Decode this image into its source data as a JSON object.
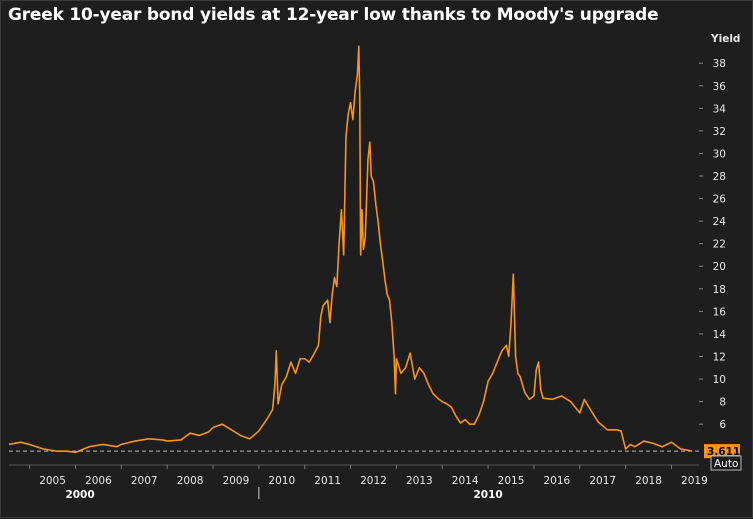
{
  "header": {
    "title": "Greek 10-year bond yields at 12-year low thanks to Moody's upgrade"
  },
  "colors": {
    "background": "#1e1e1e",
    "series": "#f7931e",
    "text": "#e8e8e8",
    "reference_line": "#bbbbbb"
  },
  "controls": {
    "scale_label": "Auto"
  },
  "chart_data": {
    "type": "line",
    "title": "Greek 10-year bond yields at 12-year low thanks to Moody's upgrade",
    "xlabel": "",
    "ylabel": "Yield",
    "xlim": [
      2004.55,
      2019.6
    ],
    "ylim": [
      3.0,
      40.5
    ],
    "y_axis_side": "right",
    "y_ticks": [
      6,
      8,
      10,
      12,
      14,
      16,
      18,
      20,
      22,
      24,
      26,
      28,
      30,
      32,
      34,
      36,
      38
    ],
    "x_ticks": [
      "2005",
      "2006",
      "2007",
      "2008",
      "2009",
      "2010",
      "2011",
      "2012",
      "2013",
      "2014",
      "2015",
      "2016",
      "2017",
      "2018",
      "2019"
    ],
    "x_major_ticks": [
      {
        "label": "2000",
        "x": 2006.1
      },
      {
        "label": "2010",
        "x": 2015.0
      }
    ],
    "grid": false,
    "last_value": 3.611,
    "last_value_label": "3.611",
    "series": [
      {
        "points": [
          [
            2004.55,
            4.2
          ],
          [
            2004.8,
            4.4
          ],
          [
            2005.0,
            4.2
          ],
          [
            2005.3,
            3.8
          ],
          [
            2005.6,
            3.6
          ],
          [
            2005.8,
            3.6
          ],
          [
            2006.0,
            3.5
          ],
          [
            2006.3,
            4.0
          ],
          [
            2006.6,
            4.2
          ],
          [
            2006.9,
            4.0
          ],
          [
            2007.0,
            4.2
          ],
          [
            2007.3,
            4.5
          ],
          [
            2007.6,
            4.7
          ],
          [
            2007.9,
            4.6
          ],
          [
            2008.0,
            4.5
          ],
          [
            2008.3,
            4.6
          ],
          [
            2008.5,
            5.2
          ],
          [
            2008.7,
            5.0
          ],
          [
            2008.9,
            5.3
          ],
          [
            2009.0,
            5.7
          ],
          [
            2009.2,
            6.0
          ],
          [
            2009.4,
            5.5
          ],
          [
            2009.6,
            5.0
          ],
          [
            2009.8,
            4.7
          ],
          [
            2010.0,
            5.4
          ],
          [
            2010.1,
            6.0
          ],
          [
            2010.2,
            6.6
          ],
          [
            2010.3,
            7.3
          ],
          [
            2010.35,
            9.5
          ],
          [
            2010.38,
            12.5
          ],
          [
            2010.42,
            7.8
          ],
          [
            2010.5,
            9.5
          ],
          [
            2010.6,
            10.2
          ],
          [
            2010.7,
            11.5
          ],
          [
            2010.8,
            10.5
          ],
          [
            2010.9,
            11.8
          ],
          [
            2011.0,
            11.8
          ],
          [
            2011.1,
            11.5
          ],
          [
            2011.2,
            12.2
          ],
          [
            2011.3,
            13.0
          ],
          [
            2011.35,
            15.5
          ],
          [
            2011.4,
            16.5
          ],
          [
            2011.5,
            17.0
          ],
          [
            2011.55,
            15.0
          ],
          [
            2011.6,
            17.5
          ],
          [
            2011.65,
            19.0
          ],
          [
            2011.7,
            18.2
          ],
          [
            2011.75,
            22.0
          ],
          [
            2011.8,
            25.0
          ],
          [
            2011.85,
            21.0
          ],
          [
            2011.9,
            31.5
          ],
          [
            2011.95,
            33.5
          ],
          [
            2012.0,
            34.5
          ],
          [
            2012.05,
            33.0
          ],
          [
            2012.1,
            35.5
          ],
          [
            2012.15,
            37.0
          ],
          [
            2012.18,
            39.5
          ],
          [
            2012.2,
            35.0
          ],
          [
            2012.22,
            21.0
          ],
          [
            2012.25,
            25.0
          ],
          [
            2012.28,
            21.5
          ],
          [
            2012.32,
            22.5
          ],
          [
            2012.38,
            29.5
          ],
          [
            2012.42,
            31.0
          ],
          [
            2012.45,
            28.0
          ],
          [
            2012.5,
            27.5
          ],
          [
            2012.55,
            25.5
          ],
          [
            2012.6,
            24.0
          ],
          [
            2012.65,
            22.0
          ],
          [
            2012.7,
            20.5
          ],
          [
            2012.75,
            18.8
          ],
          [
            2012.8,
            17.5
          ],
          [
            2012.85,
            17.0
          ],
          [
            2012.9,
            15.0
          ],
          [
            2012.95,
            12.0
          ],
          [
            2012.98,
            8.7
          ],
          [
            2013.0,
            11.8
          ],
          [
            2013.1,
            10.5
          ],
          [
            2013.2,
            11.0
          ],
          [
            2013.3,
            12.3
          ],
          [
            2013.4,
            10.0
          ],
          [
            2013.5,
            11.0
          ],
          [
            2013.6,
            10.5
          ],
          [
            2013.7,
            9.5
          ],
          [
            2013.8,
            8.7
          ],
          [
            2013.9,
            8.3
          ],
          [
            2014.0,
            8.0
          ],
          [
            2014.1,
            7.8
          ],
          [
            2014.2,
            7.5
          ],
          [
            2014.3,
            6.7
          ],
          [
            2014.4,
            6.1
          ],
          [
            2014.5,
            6.4
          ],
          [
            2014.6,
            6.0
          ],
          [
            2014.7,
            6.0
          ],
          [
            2014.8,
            6.8
          ],
          [
            2014.9,
            8.0
          ],
          [
            2015.0,
            9.8
          ],
          [
            2015.1,
            10.5
          ],
          [
            2015.2,
            11.5
          ],
          [
            2015.3,
            12.5
          ],
          [
            2015.4,
            13.0
          ],
          [
            2015.45,
            12.0
          ],
          [
            2015.5,
            15.0
          ],
          [
            2015.55,
            19.3
          ],
          [
            2015.6,
            12.0
          ],
          [
            2015.65,
            10.5
          ],
          [
            2015.7,
            10.2
          ],
          [
            2015.8,
            8.8
          ],
          [
            2015.9,
            8.2
          ],
          [
            2016.0,
            8.5
          ],
          [
            2016.05,
            10.8
          ],
          [
            2016.1,
            11.5
          ],
          [
            2016.15,
            9.0
          ],
          [
            2016.2,
            8.3
          ],
          [
            2016.4,
            8.2
          ],
          [
            2016.6,
            8.5
          ],
          [
            2016.8,
            8.0
          ],
          [
            2017.0,
            7.0
          ],
          [
            2017.1,
            8.2
          ],
          [
            2017.2,
            7.5
          ],
          [
            2017.4,
            6.2
          ],
          [
            2017.6,
            5.5
          ],
          [
            2017.8,
            5.5
          ],
          [
            2017.9,
            5.4
          ],
          [
            2018.0,
            3.8
          ],
          [
            2018.1,
            4.2
          ],
          [
            2018.2,
            4.0
          ],
          [
            2018.4,
            4.5
          ],
          [
            2018.6,
            4.3
          ],
          [
            2018.8,
            4.0
          ],
          [
            2019.0,
            4.4
          ],
          [
            2019.2,
            3.8
          ],
          [
            2019.35,
            3.7
          ],
          [
            2019.45,
            3.611
          ]
        ]
      }
    ]
  }
}
